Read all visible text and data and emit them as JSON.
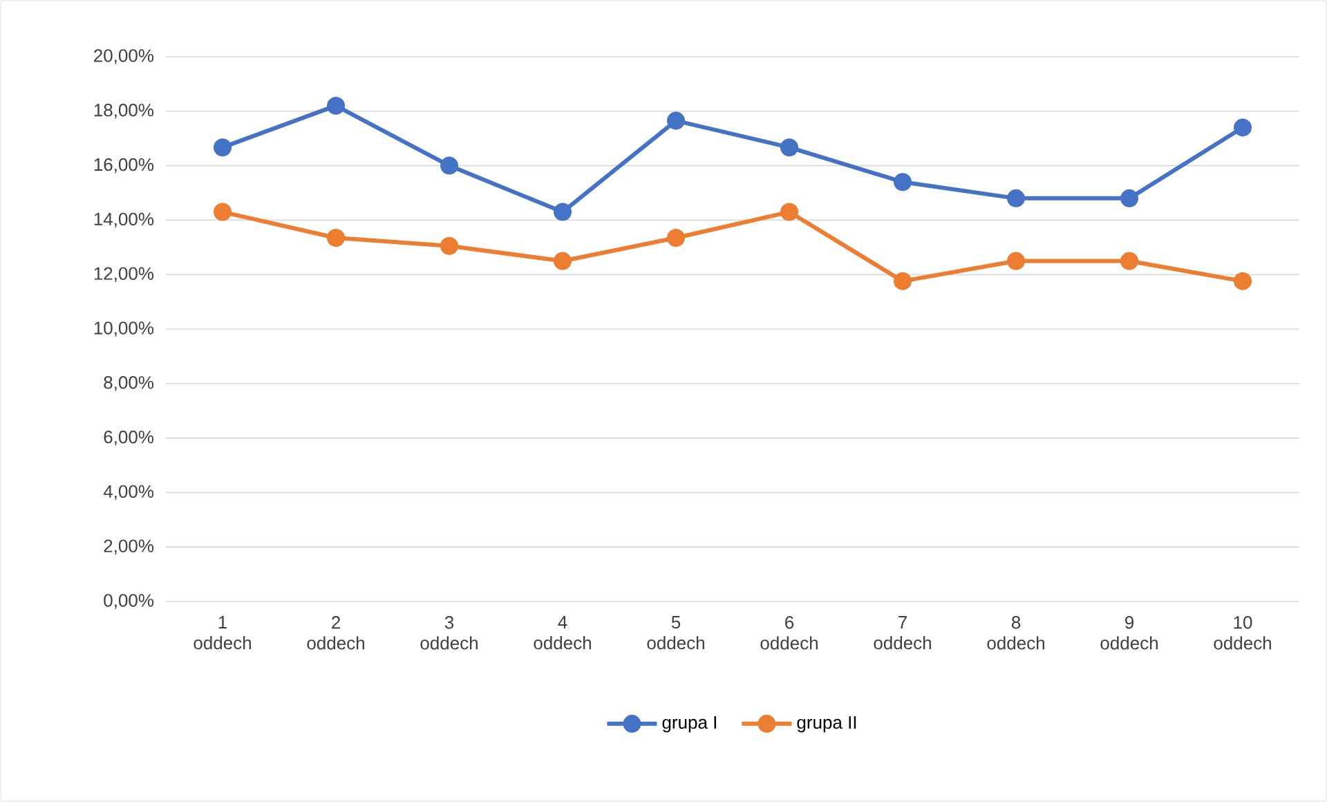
{
  "chart_data": {
    "type": "line",
    "categories": [
      "1 oddech",
      "2 oddech",
      "3 oddech",
      "4 oddech",
      "5 oddech",
      "6 oddech",
      "7 oddech",
      "8 oddech",
      "9 oddech",
      "10 oddech"
    ],
    "series": [
      {
        "name": "grupa I",
        "color": "#4472c4",
        "values": [
          16.67,
          18.2,
          16.0,
          14.3,
          17.65,
          16.67,
          15.4,
          14.8,
          14.8,
          17.4
        ]
      },
      {
        "name": "grupa II",
        "color": "#ed7d31",
        "values": [
          14.3,
          13.35,
          13.05,
          12.5,
          13.35,
          14.3,
          11.76,
          12.5,
          12.5,
          11.76
        ]
      }
    ],
    "ylim": [
      0,
      20
    ],
    "yticks": [
      {
        "value": 0,
        "label": "0,00%"
      },
      {
        "value": 2,
        "label": "2,00%"
      },
      {
        "value": 4,
        "label": "4,00%"
      },
      {
        "value": 6,
        "label": "6,00%"
      },
      {
        "value": 8,
        "label": "8,00%"
      },
      {
        "value": 10,
        "label": "10,00%"
      },
      {
        "value": 12,
        "label": "12,00%"
      },
      {
        "value": 14,
        "label": "14,00%"
      },
      {
        "value": 16,
        "label": "16,00%"
      },
      {
        "value": 18,
        "label": "18,00%"
      },
      {
        "value": 20,
        "label": "20,00%"
      }
    ],
    "grid": "y",
    "legend": "bottom",
    "marker": "circle",
    "line_style": "solid"
  }
}
